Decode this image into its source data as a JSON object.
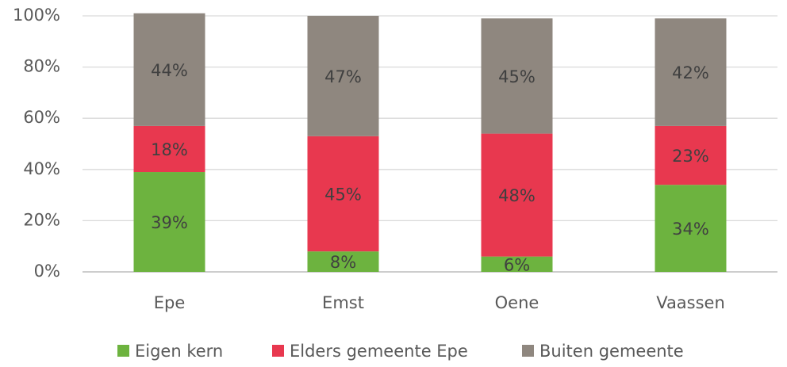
{
  "chart_data": {
    "type": "stacked_bar",
    "categories": [
      "Epe",
      "Emst",
      "Oene",
      "Vaassen"
    ],
    "series": [
      {
        "name": "Eigen kern",
        "color": "#6db33f",
        "values": [
          39,
          8,
          6,
          34
        ],
        "value_labels": [
          "39%",
          "8%",
          "6%",
          "34%"
        ]
      },
      {
        "name": "Elders gemeente Epe",
        "color": "#e8384f",
        "values": [
          18,
          45,
          48,
          23
        ],
        "value_labels": [
          "18%",
          "45%",
          "48%",
          "23%"
        ]
      },
      {
        "name": "Buiten gemeente",
        "color": "#8f877f",
        "values": [
          44,
          47,
          45,
          42
        ],
        "value_labels": [
          "44%",
          "47%",
          "45%",
          "42%"
        ]
      }
    ],
    "ylim": [
      0,
      100
    ],
    "yticks": [
      {
        "value": 0,
        "label": "0%"
      },
      {
        "value": 20,
        "label": "20%"
      },
      {
        "value": 40,
        "label": "40%"
      },
      {
        "value": 60,
        "label": "60%"
      },
      {
        "value": 80,
        "label": "80%"
      },
      {
        "value": 100,
        "label": "100%"
      }
    ],
    "grid": true,
    "legend": "bottom"
  }
}
